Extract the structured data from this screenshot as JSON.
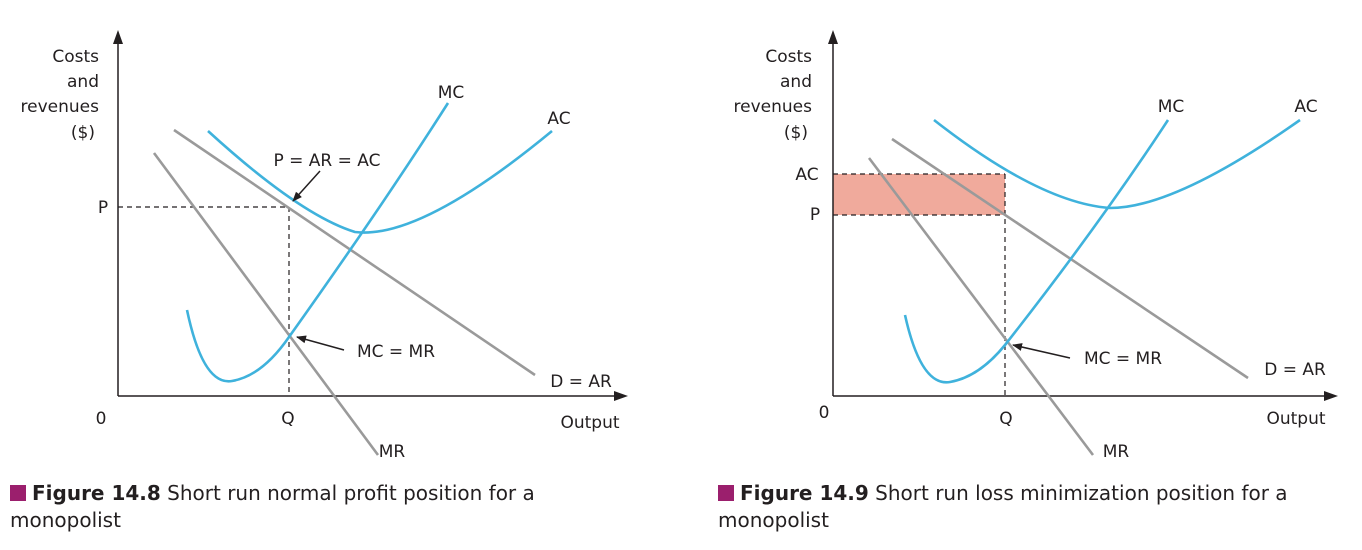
{
  "colors": {
    "curve_blue": "#3fb2dc",
    "line_grey": "#9a9a9a",
    "axis": "#231f20",
    "loss_fill": "#f0aa9c",
    "caption_square": "#9b1f6d"
  },
  "figure1": {
    "ylabel": [
      "Costs",
      "and",
      "revenues",
      "($)"
    ],
    "origin": "0",
    "xlabel": "Output",
    "mc": "MC",
    "ac": "AC",
    "demand": "D = AR",
    "mr": "MR",
    "p_tick": "P",
    "q_tick": "Q",
    "annot_top": "P = AR = AC",
    "annot_mid": "MC = MR",
    "caption_bold": "Figure 14.8",
    "caption_text": " Short run normal profit position for a monopolist"
  },
  "figure2": {
    "ylabel": [
      "Costs",
      "and",
      "revenues",
      "($)"
    ],
    "origin": "0",
    "xlabel": "Output",
    "mc": "MC",
    "ac": "AC",
    "demand": "D = AR",
    "mr": "MR",
    "ac_tick": "AC",
    "p_tick": "P",
    "q_tick": "Q",
    "annot_mid": "MC = MR",
    "caption_bold": "Figure 14.9",
    "caption_text": " Short run loss minimization position for a monopolist"
  }
}
